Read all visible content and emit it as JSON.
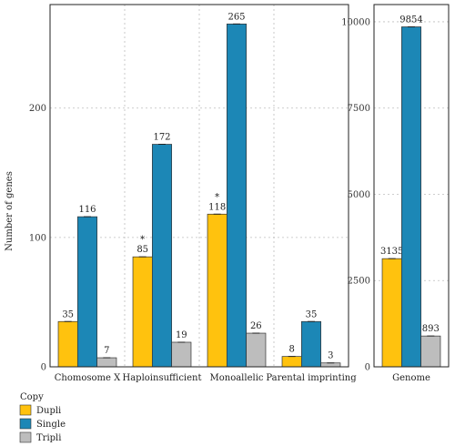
{
  "chart_data": [
    {
      "type": "bar",
      "ylabel": "Number of genes",
      "ylim": [
        0,
        280
      ],
      "yticks": [
        0,
        100,
        200
      ],
      "grid": true,
      "categories": [
        "Chomosome X",
        "Haploinsufficient",
        "Monoallelic",
        "Parental imprinting"
      ],
      "series": [
        {
          "name": "Dupli",
          "color": "#FFC20E",
          "values": [
            35,
            85,
            118,
            8
          ]
        },
        {
          "name": "Single",
          "color": "#1C87B6",
          "values": [
            116,
            172,
            265,
            35
          ]
        },
        {
          "name": "Tripli",
          "color": "#BDBDBD",
          "values": [
            7,
            19,
            26,
            3
          ]
        }
      ],
      "annotations": [
        {
          "category": "Haploinsufficient",
          "series": "Dupli",
          "text": "*"
        },
        {
          "category": "Monoallelic",
          "series": "Dupli",
          "text": "*"
        }
      ]
    },
    {
      "type": "bar",
      "ylim": [
        0,
        10500
      ],
      "yticks": [
        0,
        2500,
        5000,
        7500,
        10000
      ],
      "grid": true,
      "categories": [
        "Genome"
      ],
      "series": [
        {
          "name": "Dupli",
          "color": "#FFC20E",
          "values": [
            3135
          ]
        },
        {
          "name": "Single",
          "color": "#1C87B6",
          "values": [
            9854
          ]
        },
        {
          "name": "Tripli",
          "color": "#BDBDBD",
          "values": [
            893
          ]
        }
      ]
    }
  ],
  "legend": {
    "title": "Copy",
    "placement": "bottom-left",
    "items": [
      {
        "label": "Dupli",
        "color": "#FFC20E"
      },
      {
        "label": "Single",
        "color": "#1C87B6"
      },
      {
        "label": "Tripli",
        "color": "#BDBDBD"
      }
    ]
  }
}
